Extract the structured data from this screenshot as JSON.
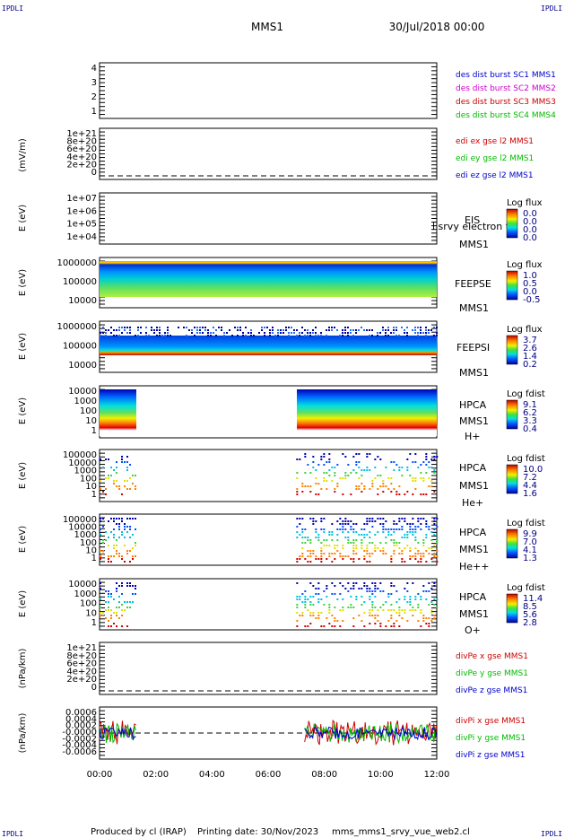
{
  "header": {
    "corner_left_top": "IPDLI",
    "corner_right_top": "IPDLI",
    "corner_left_bottom": "IPDLI",
    "corner_right_bottom": "IPDLI",
    "spacecraft": "MMS1",
    "datetime": "30/Jul/2018 00:00"
  },
  "footer": {
    "produced_by": "Produced by cl (IRAP)",
    "printing_date": "Printing date: 30/Nov/2023",
    "config": "mms_mms1_srvy_vue_web2.cl"
  },
  "time_axis": {
    "ticks": [
      "00:00",
      "02:00",
      "04:00",
      "06:00",
      "08:00",
      "10:00",
      "12:00"
    ],
    "range_hours": [
      0,
      12
    ]
  },
  "chart_data": [
    {
      "type": "line",
      "panel": "des dist burst",
      "ylabel": "",
      "yticks": [
        "4",
        "3",
        "2",
        "1"
      ],
      "ylim": [
        0.5,
        4.5
      ],
      "legend": [
        {
          "label": "des dist burst SC1 MMS1",
          "color": "#0000cc"
        },
        {
          "label": "des dist burst SC2 MMS2",
          "color": "#cc00cc"
        },
        {
          "label": "des dist burst SC3 MMS3",
          "color": "#cc0000"
        },
        {
          "label": "des dist burst SC4 MMS4",
          "color": "#00bb00"
        }
      ]
    },
    {
      "type": "line",
      "panel": "edi e",
      "ylabel": "(mV/m)",
      "yticks": [
        "1e+21",
        "8e+20",
        "6e+20",
        "4e+20",
        "2e+20",
        "0"
      ],
      "ylim": [
        0,
        1e+21
      ],
      "zero_line": true,
      "legend": [
        {
          "label": "edi ex gse l2 MMS1",
          "color": "#cc0000"
        },
        {
          "label": "edi ey gse l2 MMS1",
          "color": "#00bb00"
        },
        {
          "label": "edi ez gse l2 MMS1",
          "color": "#0000cc"
        }
      ]
    },
    {
      "type": "heatmap",
      "panel": "EIS",
      "ylabel": "E (eV)",
      "yticks": [
        "1e+07",
        "1e+06",
        "1e+05",
        "1e+04"
      ],
      "ylim": [
        10000,
        10000000
      ],
      "scale": "log",
      "right_labels": [
        "EIS",
        "MMS1"
      ],
      "overlay_label": "l srvy electron to",
      "colorbar": {
        "title": "Log flux",
        "values": [
          "0.0",
          "0.0",
          "0.0",
          "0.0"
        ]
      },
      "coverage_hours": []
    },
    {
      "type": "heatmap",
      "panel": "FEEPSE",
      "ylabel": "E (eV)",
      "yticks": [
        "1000000",
        "100000",
        "10000"
      ],
      "ylim": [
        10000,
        1000000
      ],
      "scale": "log",
      "right_labels": [
        "FEEPSE",
        "MMS1"
      ],
      "colorbar": {
        "title": "Log flux",
        "values": [
          "1.0",
          "0.5",
          "0.0",
          "-0.5"
        ]
      },
      "coverage_hours": [
        [
          0,
          12
        ]
      ]
    },
    {
      "type": "heatmap",
      "panel": "FEEPSI",
      "ylabel": "E (eV)",
      "yticks": [
        "1000000",
        "100000",
        "10000"
      ],
      "ylim": [
        10000,
        1000000
      ],
      "scale": "log",
      "right_labels": [
        "FEEPSI",
        "MMS1"
      ],
      "colorbar": {
        "title": "Log flux",
        "values": [
          "3.7",
          "2.6",
          "1.4",
          "0.2"
        ]
      },
      "coverage_hours": [
        [
          0,
          12
        ]
      ]
    },
    {
      "type": "heatmap",
      "panel": "HPCA H+",
      "ylabel": "E (eV)",
      "yticks": [
        "10000",
        "1000",
        "100",
        "10",
        "1"
      ],
      "ylim": [
        1,
        40000
      ],
      "scale": "log",
      "right_labels": [
        "HPCA",
        "MMS1",
        "H+"
      ],
      "colorbar": {
        "title": "Log fdist",
        "values": [
          "9.1",
          "6.2",
          "3.3",
          "0.4"
        ]
      },
      "coverage_hours": [
        [
          0,
          1.3
        ],
        [
          7.0,
          12
        ]
      ]
    },
    {
      "type": "heatmap",
      "panel": "HPCA He+",
      "ylabel": "E (eV)",
      "yticks": [
        "100000",
        "10000",
        "1000",
        "100",
        "10",
        "1"
      ],
      "ylim": [
        1,
        100000
      ],
      "scale": "log",
      "right_labels": [
        "HPCA",
        "MMS1",
        "He+"
      ],
      "colorbar": {
        "title": "Log fdist",
        "values": [
          "10.0",
          "7.2",
          "4.4",
          "1.6"
        ]
      },
      "coverage_hours": [
        [
          0,
          1.3
        ],
        [
          7.0,
          12
        ]
      ]
    },
    {
      "type": "heatmap",
      "panel": "HPCA He++",
      "ylabel": "E (eV)",
      "yticks": [
        "100000",
        "10000",
        "1000",
        "100",
        "10",
        "1"
      ],
      "ylim": [
        1,
        100000
      ],
      "scale": "log",
      "right_labels": [
        "HPCA",
        "MMS1",
        "He++"
      ],
      "colorbar": {
        "title": "Log fdist",
        "values": [
          "9.9",
          "7.0",
          "4.1",
          "1.3"
        ]
      },
      "coverage_hours": [
        [
          0,
          1.3
        ],
        [
          7.0,
          12
        ]
      ]
    },
    {
      "type": "heatmap",
      "panel": "HPCA O+",
      "ylabel": "E (eV)",
      "yticks": [
        "10000",
        "1000",
        "100",
        "10",
        "1"
      ],
      "ylim": [
        1,
        40000
      ],
      "scale": "log",
      "right_labels": [
        "HPCA",
        "MMS1",
        "O+"
      ],
      "colorbar": {
        "title": "Log fdist",
        "values": [
          "11.4",
          "8.5",
          "5.6",
          "2.8"
        ]
      },
      "coverage_hours": [
        [
          0,
          1.3
        ],
        [
          7.0,
          12
        ]
      ]
    },
    {
      "type": "line",
      "panel": "divPe",
      "ylabel": "(nPa/km)",
      "yticks": [
        "1e+21",
        "8e+20",
        "6e+20",
        "4e+20",
        "2e+20",
        "0"
      ],
      "ylim": [
        0,
        1e+21
      ],
      "zero_line": true,
      "legend": [
        {
          "label": "divPe x gse MMS1",
          "color": "#cc0000"
        },
        {
          "label": "divPe y gse MMS1",
          "color": "#00bb00"
        },
        {
          "label": "divPe z gse MMS1",
          "color": "#0000cc"
        }
      ]
    },
    {
      "type": "line",
      "panel": "divPi",
      "ylabel": "(nPa/km)",
      "yticks": [
        "0.0006",
        "0.0004",
        "0.0002",
        "-0.0000",
        "-0.0002",
        "-0.0004",
        "-0.0006"
      ],
      "ylim": [
        -0.0007,
        0.0007
      ],
      "zero_line": true,
      "coverage_hours": [
        [
          0,
          1.3
        ],
        [
          7.3,
          12
        ]
      ],
      "legend": [
        {
          "label": "divPi x gse MMS1",
          "color": "#cc0000"
        },
        {
          "label": "divPi y gse MMS1",
          "color": "#00bb00"
        },
        {
          "label": "divPi z gse MMS1",
          "color": "#0000cc"
        }
      ]
    }
  ]
}
